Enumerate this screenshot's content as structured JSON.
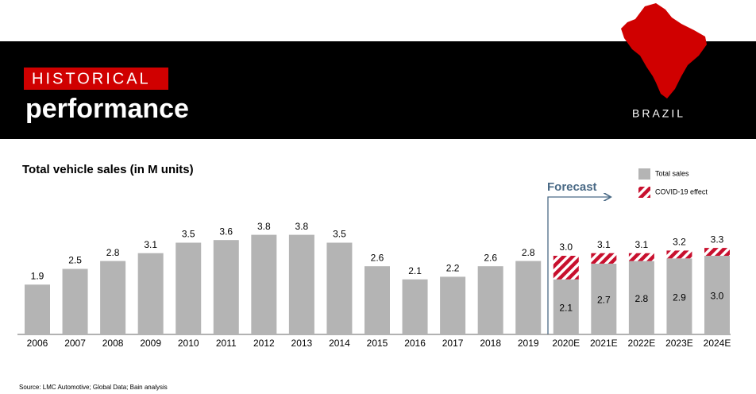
{
  "header": {
    "tag": "HISTORICAL",
    "title": "performance",
    "country": "BRAZIL"
  },
  "chart_data": {
    "type": "bar",
    "title": "Total vehicle sales (in M units)",
    "annotation": "Forecast",
    "source": "Source: LMC Automotive; Global Data; Bain analysis",
    "categories": [
      "2006",
      "2007",
      "2008",
      "2009",
      "2010",
      "2011",
      "2012",
      "2013",
      "2014",
      "2015",
      "2016",
      "2017",
      "2018",
      "2019",
      "2020E",
      "2021E",
      "2022E",
      "2023E",
      "2024E"
    ],
    "series": [
      {
        "name": "Total sales",
        "color": "#b4b4b4",
        "values": [
          1.9,
          2.5,
          2.8,
          3.1,
          3.5,
          3.6,
          3.8,
          3.8,
          3.5,
          2.6,
          2.1,
          2.2,
          2.6,
          2.8,
          2.1,
          2.7,
          2.8,
          2.9,
          3.0
        ],
        "value_labels": [
          "1.9",
          "2.5",
          "2.8",
          "3.1",
          "3.5",
          "3.6",
          "3.8",
          "3.8",
          "3.5",
          "2.6",
          "2.1",
          "2.2",
          "2.6",
          "2.8",
          "2.1",
          "2.7",
          "2.8",
          "2.9",
          "3.0"
        ]
      },
      {
        "name": "COVID-19 effect",
        "color": "#c8102e",
        "pattern": "hatch",
        "values": [
          null,
          null,
          null,
          null,
          null,
          null,
          null,
          null,
          null,
          null,
          null,
          null,
          null,
          null,
          0.9,
          0.4,
          0.3,
          0.3,
          0.3
        ]
      }
    ],
    "total_labels": [
      null,
      null,
      null,
      null,
      null,
      null,
      null,
      null,
      null,
      null,
      null,
      null,
      null,
      null,
      "3.0",
      "3.1",
      "3.1",
      "3.2",
      "3.3"
    ],
    "ylim": [
      0,
      4
    ]
  }
}
